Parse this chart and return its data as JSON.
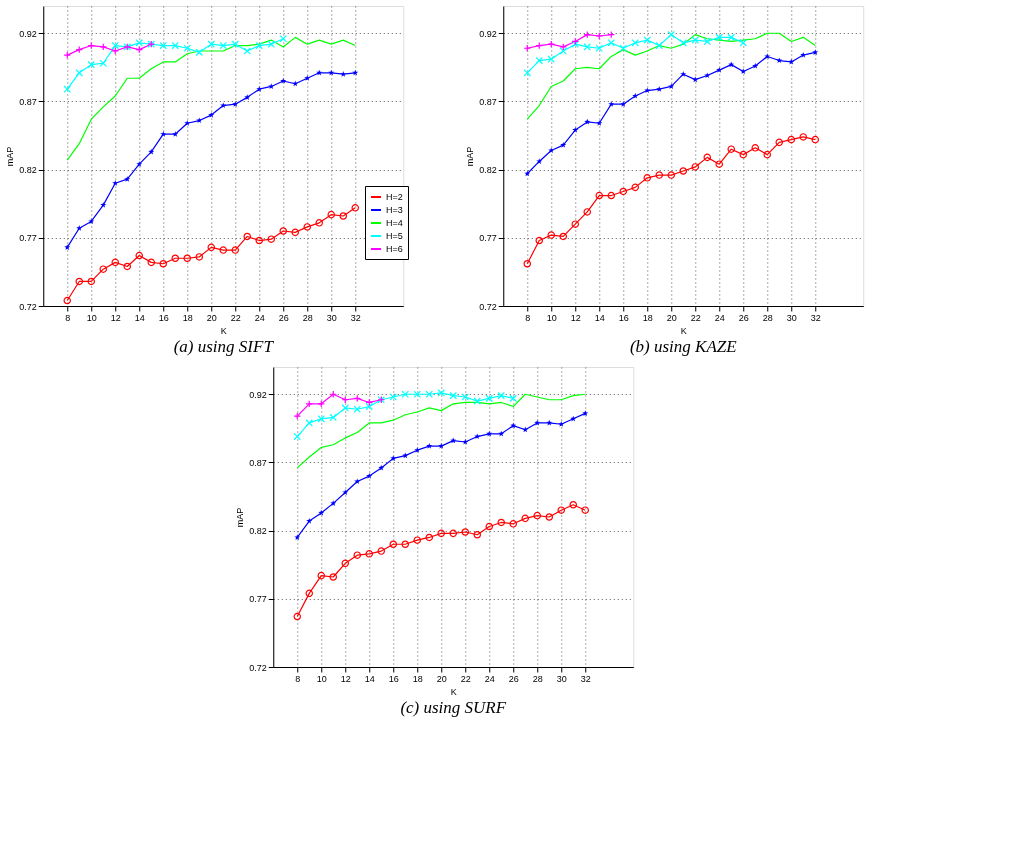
{
  "chart_data": [
    {
      "type": "line",
      "title": "(a) using SIFT",
      "xlabel": "K",
      "ylabel": "mAP",
      "xlim": [
        6,
        36
      ],
      "xticks": [
        8,
        10,
        12,
        14,
        16,
        18,
        20,
        22,
        24,
        26,
        28,
        30,
        32
      ],
      "ylim": [
        0.72,
        0.94
      ],
      "yticks": [
        0.72,
        0.77,
        0.82,
        0.87,
        0.92
      ],
      "grid": true,
      "legend": "right",
      "line_style": "solid",
      "x": [
        8,
        9,
        10,
        11,
        12,
        13,
        14,
        15,
        16,
        17,
        18,
        19,
        20,
        21,
        22,
        23,
        24,
        25,
        26,
        27,
        28,
        29,
        30,
        31,
        32
      ],
      "series": [
        {
          "name": "H=2",
          "color": "#ff0000",
          "marker": "circle",
          "values": [
            0.724,
            0.738,
            0.738,
            0.747,
            0.752,
            0.749,
            0.757,
            0.752,
            0.751,
            0.755,
            0.755,
            0.756,
            0.763,
            0.761,
            0.761,
            0.771,
            0.768,
            0.769,
            0.775,
            0.774,
            0.778,
            0.781,
            0.787,
            0.786,
            0.792
          ]
        },
        {
          "name": "H=3",
          "color": "#0000ff",
          "marker": "star",
          "values": [
            0.763,
            0.777,
            0.782,
            0.794,
            0.81,
            0.813,
            0.824,
            0.833,
            0.846,
            0.846,
            0.854,
            0.856,
            0.86,
            0.867,
            0.868,
            0.873,
            0.879,
            0.881,
            0.885,
            0.883,
            0.887,
            0.891,
            0.891,
            0.89,
            0.891
          ]
        },
        {
          "name": "H=4",
          "color": "#00ff00",
          "marker": "none",
          "values": [
            0.827,
            0.839,
            0.857,
            0.866,
            0.874,
            0.887,
            0.887,
            0.894,
            0.899,
            0.899,
            0.905,
            0.907,
            0.907,
            0.907,
            0.911,
            0.911,
            0.912,
            0.915,
            0.91,
            0.917,
            0.912,
            0.915,
            0.912,
            0.915,
            0.911
          ]
        },
        {
          "name": "H=5",
          "color": "#00ffff",
          "marker": "cross",
          "x": [
            8,
            9,
            10,
            11,
            12,
            13,
            14,
            15,
            16,
            17,
            18,
            19,
            20,
            21,
            22,
            23,
            24,
            25,
            26
          ],
          "values": [
            0.879,
            0.891,
            0.897,
            0.898,
            0.911,
            0.91,
            0.913,
            0.912,
            0.911,
            0.911,
            0.909,
            0.906,
            0.912,
            0.911,
            0.912,
            0.907,
            0.911,
            0.912,
            0.916
          ]
        },
        {
          "name": "H=6",
          "color": "#ff00ff",
          "marker": "plus",
          "x": [
            8,
            9,
            10,
            11,
            12,
            13,
            14,
            15
          ],
          "values": [
            0.904,
            0.908,
            0.911,
            0.91,
            0.907,
            0.91,
            0.908,
            0.912
          ]
        }
      ]
    },
    {
      "type": "line",
      "title": "(b) using KAZE",
      "xlabel": "K",
      "ylabel": "mAP",
      "xlim": [
        6,
        36
      ],
      "xticks": [
        8,
        10,
        12,
        14,
        16,
        18,
        20,
        22,
        24,
        26,
        28,
        30,
        32
      ],
      "ylim": [
        0.72,
        0.94
      ],
      "yticks": [
        0.72,
        0.77,
        0.82,
        0.87,
        0.92
      ],
      "grid": true,
      "legend": "right",
      "line_style": "solid",
      "x": [
        8,
        9,
        10,
        11,
        12,
        13,
        14,
        15,
        16,
        17,
        18,
        19,
        20,
        21,
        22,
        23,
        24,
        25,
        26,
        27,
        28,
        29,
        30,
        31,
        32
      ],
      "series": [
        {
          "name": "H=2",
          "color": "#ff0000",
          "marker": "circle",
          "values": [
            0.751,
            0.768,
            0.772,
            0.771,
            0.78,
            0.789,
            0.801,
            0.801,
            0.804,
            0.807,
            0.814,
            0.816,
            0.816,
            0.819,
            0.822,
            0.829,
            0.824,
            0.835,
            0.831,
            0.836,
            0.831,
            0.84,
            0.842,
            0.844,
            0.842
          ]
        },
        {
          "name": "H=3",
          "color": "#0000ff",
          "marker": "star",
          "values": [
            0.817,
            0.826,
            0.834,
            0.838,
            0.849,
            0.855,
            0.854,
            0.868,
            0.868,
            0.874,
            0.878,
            0.879,
            0.881,
            0.89,
            0.886,
            0.889,
            0.893,
            0.897,
            0.892,
            0.896,
            0.903,
            0.9,
            0.899,
            0.904,
            0.906
          ]
        },
        {
          "name": "H=4",
          "color": "#00ff00",
          "marker": "none",
          "values": [
            0.857,
            0.867,
            0.881,
            0.885,
            0.894,
            0.895,
            0.894,
            0.903,
            0.908,
            0.904,
            0.907,
            0.911,
            0.909,
            0.912,
            0.919,
            0.916,
            0.915,
            0.914,
            0.915,
            0.916,
            0.92,
            0.92,
            0.914,
            0.917,
            0.911
          ]
        },
        {
          "name": "H=5",
          "color": "#00ffff",
          "marker": "cross",
          "x": [
            8,
            9,
            10,
            11,
            12,
            13,
            14,
            15,
            16,
            17,
            18,
            19,
            20,
            21,
            22,
            23,
            24,
            25,
            26
          ],
          "values": [
            0.891,
            0.9,
            0.901,
            0.907,
            0.912,
            0.91,
            0.909,
            0.913,
            0.909,
            0.913,
            0.915,
            0.911,
            0.919,
            0.913,
            0.915,
            0.914,
            0.917,
            0.917,
            0.913
          ]
        },
        {
          "name": "H=6",
          "color": "#ff00ff",
          "marker": "plus",
          "x": [
            8,
            9,
            10,
            11,
            12,
            13,
            14,
            15
          ],
          "values": [
            0.909,
            0.911,
            0.912,
            0.91,
            0.914,
            0.919,
            0.918,
            0.919
          ]
        }
      ]
    },
    {
      "type": "line",
      "title": "(c) using SURF",
      "xlabel": "K",
      "ylabel": "mAP",
      "xlim": [
        6,
        36
      ],
      "xticks": [
        8,
        10,
        12,
        14,
        16,
        18,
        20,
        22,
        24,
        26,
        28,
        30,
        32
      ],
      "ylim": [
        0.72,
        0.94
      ],
      "yticks": [
        0.72,
        0.77,
        0.82,
        0.87,
        0.92
      ],
      "grid": true,
      "legend": "right",
      "line_style": "solid",
      "x": [
        8,
        9,
        10,
        11,
        12,
        13,
        14,
        15,
        16,
        17,
        18,
        19,
        20,
        21,
        22,
        23,
        24,
        25,
        26,
        27,
        28,
        29,
        30,
        31,
        32
      ],
      "series": [
        {
          "name": "H=2",
          "color": "#ff0000",
          "marker": "circle",
          "values": [
            0.757,
            0.774,
            0.787,
            0.786,
            0.796,
            0.802,
            0.803,
            0.805,
            0.81,
            0.81,
            0.813,
            0.815,
            0.818,
            0.818,
            0.819,
            0.817,
            0.823,
            0.826,
            0.825,
            0.829,
            0.831,
            0.83,
            0.835,
            0.839,
            0.835
          ]
        },
        {
          "name": "H=3",
          "color": "#0000ff",
          "marker": "star",
          "values": [
            0.815,
            0.827,
            0.833,
            0.84,
            0.848,
            0.856,
            0.86,
            0.866,
            0.873,
            0.875,
            0.879,
            0.882,
            0.882,
            0.886,
            0.885,
            0.889,
            0.891,
            0.891,
            0.897,
            0.894,
            0.899,
            0.899,
            0.898,
            0.902,
            0.906
          ]
        },
        {
          "name": "H=4",
          "color": "#00ff00",
          "marker": "none",
          "values": [
            0.866,
            0.874,
            0.881,
            0.883,
            0.888,
            0.892,
            0.899,
            0.899,
            0.901,
            0.905,
            0.907,
            0.91,
            0.908,
            0.913,
            0.914,
            0.914,
            0.913,
            0.914,
            0.911,
            0.92,
            0.918,
            0.916,
            0.916,
            0.919,
            0.92
          ]
        },
        {
          "name": "H=5",
          "color": "#00ffff",
          "marker": "cross",
          "x": [
            8,
            9,
            10,
            11,
            12,
            13,
            14,
            15,
            16,
            17,
            18,
            19,
            20,
            21,
            22,
            23,
            24,
            25,
            26
          ],
          "values": [
            0.889,
            0.899,
            0.902,
            0.903,
            0.91,
            0.909,
            0.911,
            0.916,
            0.918,
            0.92,
            0.92,
            0.92,
            0.921,
            0.919,
            0.918,
            0.915,
            0.917,
            0.919,
            0.917
          ]
        },
        {
          "name": "H=6",
          "color": "#ff00ff",
          "marker": "plus",
          "x": [
            8,
            9,
            10,
            11,
            12,
            13,
            14,
            15
          ],
          "values": [
            0.904,
            0.913,
            0.913,
            0.92,
            0.916,
            0.917,
            0.914,
            0.916
          ]
        }
      ]
    }
  ]
}
